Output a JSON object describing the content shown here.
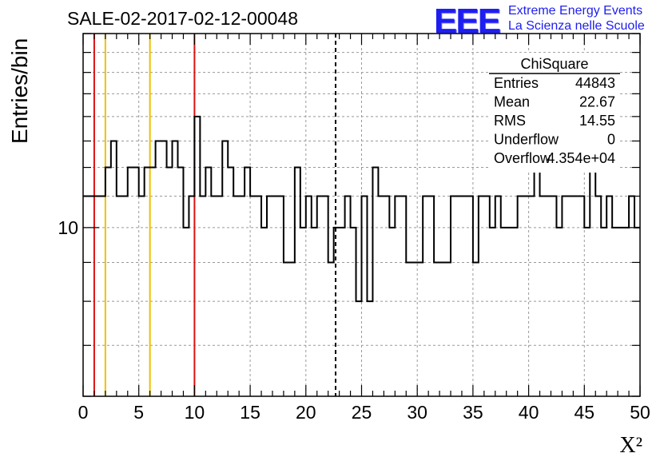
{
  "header": {
    "title": "SALE-02-2017-02-12-00048",
    "logo_text": "EEE",
    "logo_line1": "Extreme Energy Events",
    "logo_line2": "La Scienza nelle Scuole"
  },
  "stats_box": {
    "name": "ChiSquare",
    "rows": [
      {
        "label": "Entries",
        "value": "44843"
      },
      {
        "label": "Mean",
        "value": "22.67"
      },
      {
        "label": "RMS",
        "value": "14.55"
      },
      {
        "label": "Underflow",
        "value": "0"
      },
      {
        "label": "Overflow",
        "value": "4.354e+04"
      }
    ]
  },
  "colors": {
    "histogram": "#000000",
    "red_lines": "#dd1111",
    "yellow_lines": "#f0c000",
    "mean_line": "#000000",
    "grid": "#999999"
  },
  "chart_data": {
    "type": "histogram",
    "title": "SALE-02-2017-02-12-00048",
    "xlabel": "X²",
    "ylabel": "Entries/bin",
    "xlim": [
      0,
      50
    ],
    "ylim": [
      6,
      18
    ],
    "yscale": "log",
    "grid": true,
    "x_ticks": [
      0,
      5,
      10,
      15,
      20,
      25,
      30,
      35,
      40,
      45,
      50
    ],
    "y_tick_labels": [
      {
        "value": 10,
        "label": "10"
      }
    ],
    "bin_width": 0.5,
    "bin_start": 0,
    "values": [
      11,
      11,
      11,
      11,
      12,
      13,
      11,
      11,
      12,
      12,
      11,
      12,
      12,
      13,
      13,
      12,
      13,
      12,
      10,
      11,
      14,
      11,
      12,
      11,
      11,
      13,
      12,
      11,
      11,
      12,
      11,
      11,
      10,
      11,
      11,
      11,
      9,
      9,
      12,
      10,
      11,
      10,
      11,
      11,
      9,
      10,
      10,
      11,
      10,
      8,
      11,
      8,
      12,
      11,
      11,
      10,
      11,
      11,
      9,
      9,
      9,
      11,
      11,
      9,
      9,
      9,
      11,
      11,
      11,
      11,
      9,
      11,
      11,
      10,
      11,
      10,
      10,
      10,
      11,
      11,
      11,
      12,
      11,
      11,
      11,
      10,
      11,
      11,
      11,
      11,
      10,
      12,
      11,
      10,
      11,
      10,
      10,
      10,
      11,
      10
    ],
    "reference_lines": [
      {
        "x": 1,
        "color": "red"
      },
      {
        "x": 2,
        "color": "yellow"
      },
      {
        "x": 6,
        "color": "yellow"
      },
      {
        "x": 10,
        "color": "red"
      },
      {
        "x": 22.67,
        "color": "black",
        "style": "dashed",
        "note": "mean"
      }
    ]
  }
}
